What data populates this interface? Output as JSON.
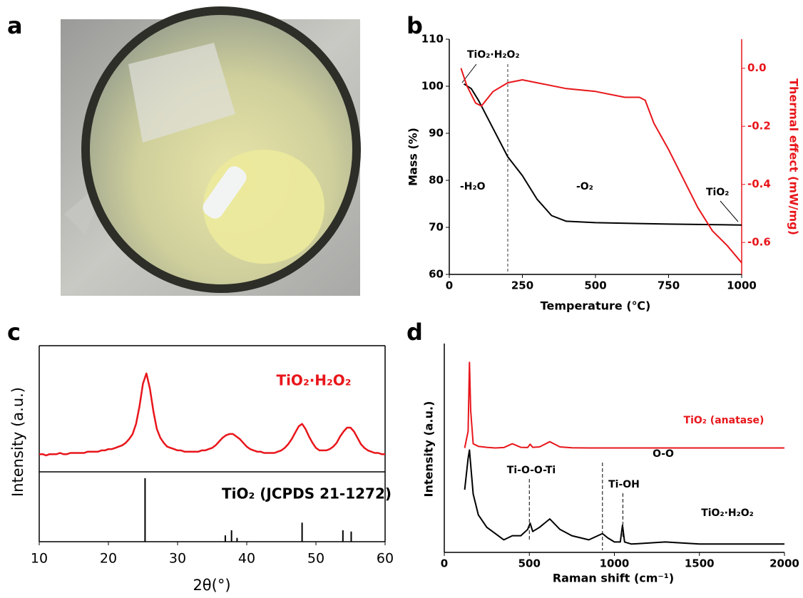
{
  "photo": {
    "panel": "a"
  },
  "chart_data": [
    {
      "type": "line",
      "panel": "b",
      "xlabel": "Temperature (℃)",
      "ylabel": "Mass (%)",
      "y2label": "Thermal effect (mW/mg)",
      "xlim": [
        0,
        1000
      ],
      "xticks": [
        0,
        250,
        500,
        750,
        1000
      ],
      "ylim": [
        60,
        110
      ],
      "yticks": [
        60,
        70,
        80,
        90,
        100,
        110
      ],
      "y2lim": [
        -0.71,
        0.1
      ],
      "y2ticks": [
        {
          "value": 0,
          "label": "0.0"
        },
        -0.2,
        -0.4,
        -0.6
      ],
      "vline": 200,
      "annotations": [
        "TiO₂·H₂O₂",
        "-H₂O",
        "-O₂",
        "TiO₂"
      ],
      "series": [
        {
          "name": "Mass",
          "color": "#000000",
          "x": [
            50,
            75,
            100,
            150,
            200,
            250,
            300,
            350,
            400,
            500,
            750,
            1000
          ],
          "values": [
            100.5,
            99.5,
            97,
            91,
            85,
            81,
            76,
            72.5,
            71.3,
            71,
            70.7,
            70.5
          ]
        },
        {
          "name": "Thermal effect",
          "color": "#e8161b",
          "axis": "y2",
          "x": [
            40,
            60,
            90,
            110,
            150,
            200,
            250,
            300,
            400,
            500,
            600,
            650,
            670,
            700,
            750,
            800,
            850,
            900,
            950,
            1000
          ],
          "values": [
            0.0,
            -0.06,
            -0.12,
            -0.13,
            -0.08,
            -0.05,
            -0.04,
            -0.05,
            -0.07,
            -0.08,
            -0.1,
            -0.1,
            -0.11,
            -0.19,
            -0.28,
            -0.38,
            -0.48,
            -0.56,
            -0.61,
            -0.67
          ]
        }
      ]
    },
    {
      "type": "line",
      "panel": "c",
      "xlabel": "2θ(°)",
      "ylabel": "Intensity (a.u.)",
      "xlim": [
        10,
        60
      ],
      "xticks": [
        10,
        20,
        30,
        40,
        50,
        60
      ],
      "ylim": [
        0,
        100
      ],
      "series": [
        {
          "name": "TiO₂·H₂O₂",
          "color": "#e8161b",
          "x": [
            10,
            10.5,
            11,
            11.5,
            12,
            12.5,
            13,
            13.5,
            14,
            14.5,
            15,
            15.5,
            16,
            16.5,
            17,
            17.5,
            18,
            18.5,
            19,
            19.5,
            20,
            20.5,
            21,
            21.5,
            22,
            22.5,
            23,
            23.5,
            24,
            24.5,
            25,
            25.5,
            26,
            26.5,
            27,
            27.5,
            28,
            28.5,
            29,
            29.5,
            30,
            30.5,
            31,
            31.5,
            32,
            32.5,
            33,
            33.5,
            34,
            34.5,
            35,
            35.5,
            36,
            36.5,
            37,
            37.5,
            38,
            38.5,
            39,
            39.5,
            40,
            40.5,
            41,
            41.5,
            42,
            42.5,
            43,
            43.5,
            44,
            44.5,
            45,
            45.5,
            46,
            46.5,
            47,
            47.5,
            48,
            48.5,
            49,
            49.5,
            50,
            50.5,
            51,
            51.5,
            52,
            52.5,
            53,
            53.5,
            54,
            54.5,
            55,
            55.5,
            56,
            56.5,
            57,
            57.5,
            58,
            58.5,
            59,
            59.5,
            60
          ],
          "values": [
            14,
            14,
            13,
            14,
            14,
            14,
            15,
            14,
            14,
            15,
            15,
            15,
            15,
            15,
            16,
            16,
            16,
            16,
            17,
            17,
            18,
            18,
            19,
            20,
            21,
            23,
            26,
            30,
            38,
            52,
            70,
            78,
            66,
            48,
            34,
            27,
            23,
            20,
            19,
            18,
            17,
            17,
            16,
            16,
            16,
            16,
            16,
            17,
            17,
            18,
            19,
            21,
            24,
            27,
            29,
            30,
            30,
            28,
            26,
            23,
            20,
            18,
            17,
            16,
            16,
            15,
            15,
            15,
            15,
            16,
            17,
            19,
            22,
            26,
            31,
            36,
            38,
            34,
            28,
            23,
            19,
            17,
            17,
            17,
            18,
            20,
            23,
            28,
            32,
            35,
            35,
            32,
            27,
            22,
            19,
            17,
            16,
            15,
            15,
            14,
            14
          ]
        }
      ],
      "reference": {
        "name": "TiO₂ (JCPDS 21-1272)",
        "color": "#000000",
        "ylim": [
          0,
          110
        ],
        "x": [
          25.3,
          36.9,
          37.8,
          38.6,
          48.0,
          53.9,
          55.1
        ],
        "values": [
          100,
          10,
          18,
          6,
          30,
          18,
          16
        ]
      }
    },
    {
      "type": "line",
      "panel": "d",
      "xlabel": "Raman shift (cm⁻¹)",
      "ylabel": "Intensity (a.u.)",
      "xlim": [
        0,
        2000
      ],
      "xticks": [
        0,
        500,
        1000,
        1500,
        2000
      ],
      "ylim": [
        0,
        100
      ],
      "markers": [
        {
          "x": 500,
          "label": "Ti-O-O-Ti"
        },
        {
          "x": 930,
          "label": "O-O"
        },
        {
          "x": 1050,
          "label": "Ti-OH"
        }
      ],
      "series": [
        {
          "name": "TiO₂ (anatase)",
          "color": "#e8161b",
          "x": [
            120,
            140,
            148,
            155,
            170,
            200,
            250,
            300,
            350,
            400,
            450,
            490,
            505,
            520,
            560,
            620,
            680,
            750,
            850,
            930,
            960,
            1000,
            1035,
            1048,
            1060,
            1100,
            1300,
            1500,
            2000
          ],
          "values": [
            50,
            58,
            91,
            68,
            52,
            50.8,
            50.3,
            50,
            50.2,
            52,
            50.3,
            50.2,
            51.8,
            50.3,
            50.5,
            53,
            50.5,
            50.1,
            50,
            50,
            50,
            50,
            50,
            50,
            50,
            50,
            50,
            50,
            50
          ]
        },
        {
          "name": "TiO₂·H₂O₂",
          "color": "#000000",
          "x": [
            120,
            140,
            148,
            155,
            170,
            200,
            250,
            300,
            350,
            400,
            450,
            490,
            505,
            520,
            560,
            620,
            680,
            750,
            850,
            930,
            960,
            1000,
            1035,
            1048,
            1060,
            1100,
            1300,
            1500,
            2000
          ],
          "values": [
            30,
            45,
            49,
            42,
            28,
            18,
            12,
            9,
            6,
            8,
            8,
            11,
            14,
            10,
            12,
            16,
            11,
            8,
            6,
            9,
            7,
            5,
            5,
            13,
            5,
            4,
            5,
            4,
            4
          ]
        }
      ]
    }
  ]
}
